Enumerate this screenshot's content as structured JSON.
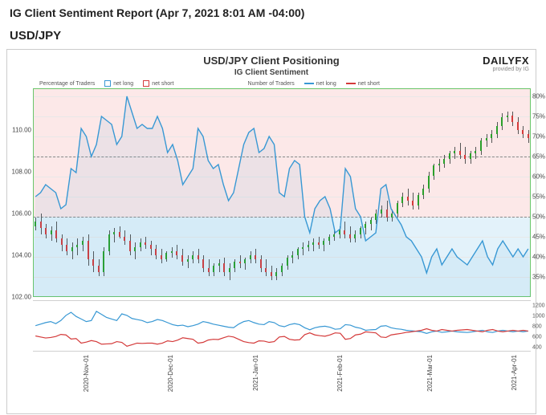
{
  "header": {
    "title": "IG Client Sentiment Report (Apr 7, 2021 8:01 AM -04:00)"
  },
  "pair": "USD/JPY",
  "chart": {
    "title": "USD/JPY Client Positioning",
    "subtitle": "IG Client Sentiment",
    "brand": "DAILYFX",
    "brand_sub": "provided by IG"
  },
  "main_chart": {
    "y_left": {
      "min": 102,
      "max": 112,
      "ticks": [
        102,
        104,
        106,
        108,
        110
      ]
    },
    "y_right": {
      "min": 30,
      "max": 82,
      "ticks": [
        35,
        40,
        45,
        50,
        55,
        60,
        65,
        70,
        75,
        80
      ]
    },
    "fifty_line": 50,
    "dash_ref": 65,
    "bg_top_color": "#fce8e8",
    "bg_bot_color": "#e3f2fa",
    "border_color": "#6ac66a",
    "blue_line": {
      "color": "#3898d4",
      "width": 1.4,
      "data": [
        55,
        56,
        58,
        57,
        56,
        52,
        53,
        62,
        61,
        72,
        70,
        65,
        68,
        75,
        74,
        73,
        68,
        70,
        80,
        76,
        72,
        73,
        72,
        72,
        75,
        72,
        66,
        68,
        64,
        58,
        60,
        62,
        72,
        70,
        64,
        62,
        63,
        58,
        54,
        56,
        62,
        68,
        71,
        72,
        66,
        67,
        70,
        68,
        56,
        55,
        62,
        64,
        63,
        50,
        46,
        52,
        54,
        55,
        52,
        46,
        47,
        62,
        60,
        52,
        50,
        44,
        45,
        46,
        57,
        58,
        52,
        50,
        48,
        45,
        44,
        42,
        40,
        36,
        40,
        42,
        38,
        40,
        42,
        40,
        39,
        38,
        40,
        42,
        44,
        40,
        38,
        42,
        44,
        42,
        40,
        42,
        40,
        42
      ]
    },
    "candles": {
      "up_color": "#2aa02a",
      "down_color": "#d43a3a",
      "data": [
        [
          105.4,
          105.8,
          105.2,
          105.6
        ],
        [
          105.6,
          106.0,
          105.0,
          105.3
        ],
        [
          105.3,
          105.5,
          104.8,
          105.0
        ],
        [
          105.0,
          105.4,
          104.7,
          105.2
        ],
        [
          105.2,
          105.6,
          104.6,
          104.8
        ],
        [
          104.8,
          105.0,
          104.2,
          104.5
        ],
        [
          104.5,
          104.8,
          104.0,
          104.2
        ],
        [
          104.2,
          104.6,
          103.8,
          104.4
        ],
        [
          104.4,
          104.8,
          104.0,
          104.5
        ],
        [
          104.5,
          104.9,
          104.2,
          104.7
        ],
        [
          104.7,
          105.0,
          103.5,
          103.8
        ],
        [
          103.8,
          104.2,
          103.2,
          103.5
        ],
        [
          103.5,
          103.8,
          103.0,
          103.2
        ],
        [
          103.2,
          104.4,
          103.0,
          104.2
        ],
        [
          104.2,
          105.2,
          104.0,
          105.0
        ],
        [
          105.0,
          105.3,
          104.6,
          105.1
        ],
        [
          105.1,
          105.4,
          104.8,
          104.9
        ],
        [
          104.9,
          105.2,
          104.5,
          104.7
        ],
        [
          104.7,
          105.0,
          104.0,
          104.2
        ],
        [
          104.2,
          104.6,
          103.8,
          104.4
        ],
        [
          104.4,
          104.8,
          104.2,
          104.6
        ],
        [
          104.6,
          104.9,
          104.3,
          104.5
        ],
        [
          104.5,
          104.7,
          104.0,
          104.3
        ],
        [
          104.3,
          104.5,
          103.8,
          104.0
        ],
        [
          104.0,
          104.3,
          103.6,
          103.8
        ],
        [
          103.8,
          104.2,
          103.7,
          104.1
        ],
        [
          104.1,
          104.4,
          103.9,
          104.2
        ],
        [
          104.2,
          104.5,
          103.8,
          104.0
        ],
        [
          104.0,
          104.3,
          103.5,
          103.7
        ],
        [
          103.7,
          104.0,
          103.4,
          103.8
        ],
        [
          103.8,
          104.2,
          103.6,
          104.0
        ],
        [
          104.0,
          104.3,
          103.6,
          103.8
        ],
        [
          103.8,
          104.0,
          103.2,
          103.4
        ],
        [
          103.4,
          103.8,
          103.0,
          103.2
        ],
        [
          103.2,
          103.6,
          103.0,
          103.5
        ],
        [
          103.5,
          103.8,
          103.2,
          103.6
        ],
        [
          103.6,
          103.9,
          103.0,
          103.2
        ],
        [
          103.2,
          103.6,
          102.8,
          103.4
        ],
        [
          103.4,
          103.8,
          103.2,
          103.7
        ],
        [
          103.7,
          104.0,
          103.4,
          103.6
        ],
        [
          103.6,
          103.9,
          103.3,
          103.8
        ],
        [
          103.8,
          104.2,
          103.6,
          104.0
        ],
        [
          104.0,
          104.3,
          103.6,
          103.8
        ],
        [
          103.8,
          104.0,
          103.2,
          103.4
        ],
        [
          103.4,
          103.8,
          103.0,
          103.2
        ],
        [
          103.2,
          103.5,
          102.8,
          103.0
        ],
        [
          103.0,
          103.4,
          102.8,
          103.2
        ],
        [
          103.2,
          103.6,
          103.0,
          103.5
        ],
        [
          103.5,
          104.0,
          103.3,
          103.9
        ],
        [
          103.9,
          104.2,
          103.6,
          104.0
        ],
        [
          104.0,
          104.4,
          103.8,
          104.3
        ],
        [
          104.3,
          104.6,
          104.0,
          104.4
        ],
        [
          104.4,
          104.7,
          104.2,
          104.5
        ],
        [
          104.5,
          104.8,
          104.2,
          104.6
        ],
        [
          104.6,
          104.9,
          104.3,
          104.5
        ],
        [
          104.5,
          104.8,
          104.2,
          104.7
        ],
        [
          104.7,
          105.0,
          104.5,
          104.9
        ],
        [
          104.9,
          105.2,
          104.7,
          105.0
        ],
        [
          105.0,
          105.4,
          104.8,
          105.2
        ],
        [
          105.2,
          105.6,
          104.8,
          105.0
        ],
        [
          105.0,
          105.4,
          104.6,
          104.8
        ],
        [
          104.8,
          105.2,
          104.6,
          105.0
        ],
        [
          105.0,
          105.4,
          104.8,
          105.3
        ],
        [
          105.3,
          105.6,
          105.0,
          105.5
        ],
        [
          105.5,
          105.8,
          105.2,
          105.7
        ],
        [
          105.7,
          106.2,
          105.5,
          106.0
        ],
        [
          106.0,
          106.4,
          105.8,
          106.2
        ],
        [
          106.2,
          106.6,
          105.6,
          105.8
        ],
        [
          105.8,
          106.2,
          105.6,
          106.0
        ],
        [
          106.0,
          106.6,
          105.8,
          106.5
        ],
        [
          106.5,
          107.0,
          106.3,
          106.8
        ],
        [
          106.8,
          107.2,
          106.4,
          106.6
        ],
        [
          106.6,
          107.0,
          106.2,
          106.4
        ],
        [
          106.4,
          107.0,
          106.2,
          106.9
        ],
        [
          106.9,
          107.4,
          106.7,
          107.2
        ],
        [
          107.2,
          108.0,
          107.0,
          107.8
        ],
        [
          107.8,
          108.4,
          107.6,
          108.3
        ],
        [
          108.3,
          108.6,
          108.0,
          108.4
        ],
        [
          108.4,
          108.8,
          108.2,
          108.6
        ],
        [
          108.6,
          109.0,
          108.4,
          108.9
        ],
        [
          108.9,
          109.2,
          108.6,
          109.0
        ],
        [
          109.0,
          109.4,
          108.6,
          108.8
        ],
        [
          108.8,
          109.2,
          108.4,
          108.6
        ],
        [
          108.6,
          109.0,
          108.4,
          108.9
        ],
        [
          108.9,
          109.2,
          108.6,
          109.0
        ],
        [
          109.0,
          109.6,
          108.8,
          109.5
        ],
        [
          109.5,
          109.8,
          109.2,
          109.6
        ],
        [
          109.6,
          110.0,
          109.4,
          109.8
        ],
        [
          109.8,
          110.4,
          109.6,
          110.2
        ],
        [
          110.2,
          110.8,
          110.0,
          110.6
        ],
        [
          110.6,
          110.9,
          110.4,
          110.7
        ],
        [
          110.7,
          110.9,
          110.2,
          110.4
        ],
        [
          110.4,
          110.6,
          109.8,
          110.0
        ],
        [
          110.0,
          110.2,
          109.6,
          109.8
        ],
        [
          109.8,
          110.0,
          109.4,
          109.6
        ]
      ]
    }
  },
  "sub_chart": {
    "y_right": {
      "min": 300,
      "max": 1300,
      "ticks": [
        400,
        600,
        800,
        1000,
        1200
      ]
    },
    "legend_left_label": "Percentage of Traders",
    "legend_right_label": "Number of Traders",
    "net_long_label": "net long",
    "net_short_label": "net short",
    "blue_color": "#3898d4",
    "red_color": "#d43a3a",
    "blue_data": [
      820,
      850,
      880,
      900,
      860,
      920,
      1020,
      1080,
      1000,
      950,
      900,
      920,
      1100,
      1040,
      980,
      950,
      920,
      1050,
      1020,
      960,
      940,
      920,
      880,
      900,
      940,
      920,
      880,
      840,
      820,
      830,
      800,
      820,
      850,
      900,
      880,
      850,
      830,
      810,
      790,
      780,
      850,
      900,
      920,
      880,
      850,
      840,
      900,
      880,
      820,
      800,
      840,
      860,
      840,
      780,
      740,
      780,
      800,
      810,
      790,
      750,
      760,
      840,
      830,
      790,
      770,
      730,
      740,
      745,
      810,
      820,
      780,
      760,
      750,
      730,
      720,
      710,
      700,
      670,
      700,
      715,
      690,
      700,
      715,
      700,
      695,
      688,
      700,
      715,
      730,
      700,
      688,
      715,
      730,
      715,
      700,
      715,
      700,
      715
    ],
    "red_data": [
      620,
      600,
      580,
      590,
      610,
      650,
      640,
      560,
      570,
      480,
      500,
      530,
      510,
      460,
      465,
      470,
      510,
      495,
      420,
      450,
      480,
      475,
      480,
      480,
      460,
      480,
      525,
      510,
      540,
      585,
      570,
      555,
      480,
      495,
      540,
      555,
      550,
      585,
      615,
      600,
      555,
      510,
      490,
      480,
      525,
      520,
      495,
      510,
      600,
      610,
      555,
      540,
      546,
      645,
      680,
      640,
      625,
      615,
      640,
      680,
      672,
      555,
      570,
      640,
      655,
      700,
      690,
      680,
      600,
      590,
      640,
      655,
      670,
      690,
      700,
      715,
      730,
      760,
      730,
      715,
      745,
      730,
      715,
      730,
      738,
      745,
      730,
      715,
      700,
      730,
      745,
      715,
      700,
      715,
      730,
      715,
      730,
      715
    ]
  },
  "x_axis": {
    "labels": [
      "2020-Nov-01",
      "2020-Dec-01",
      "2021-Jan-01",
      "2021-Feb-01",
      "2021-Mar-01",
      "2021-Apr-01"
    ],
    "positions": [
      0.1,
      0.27,
      0.44,
      0.61,
      0.79,
      0.96
    ]
  }
}
